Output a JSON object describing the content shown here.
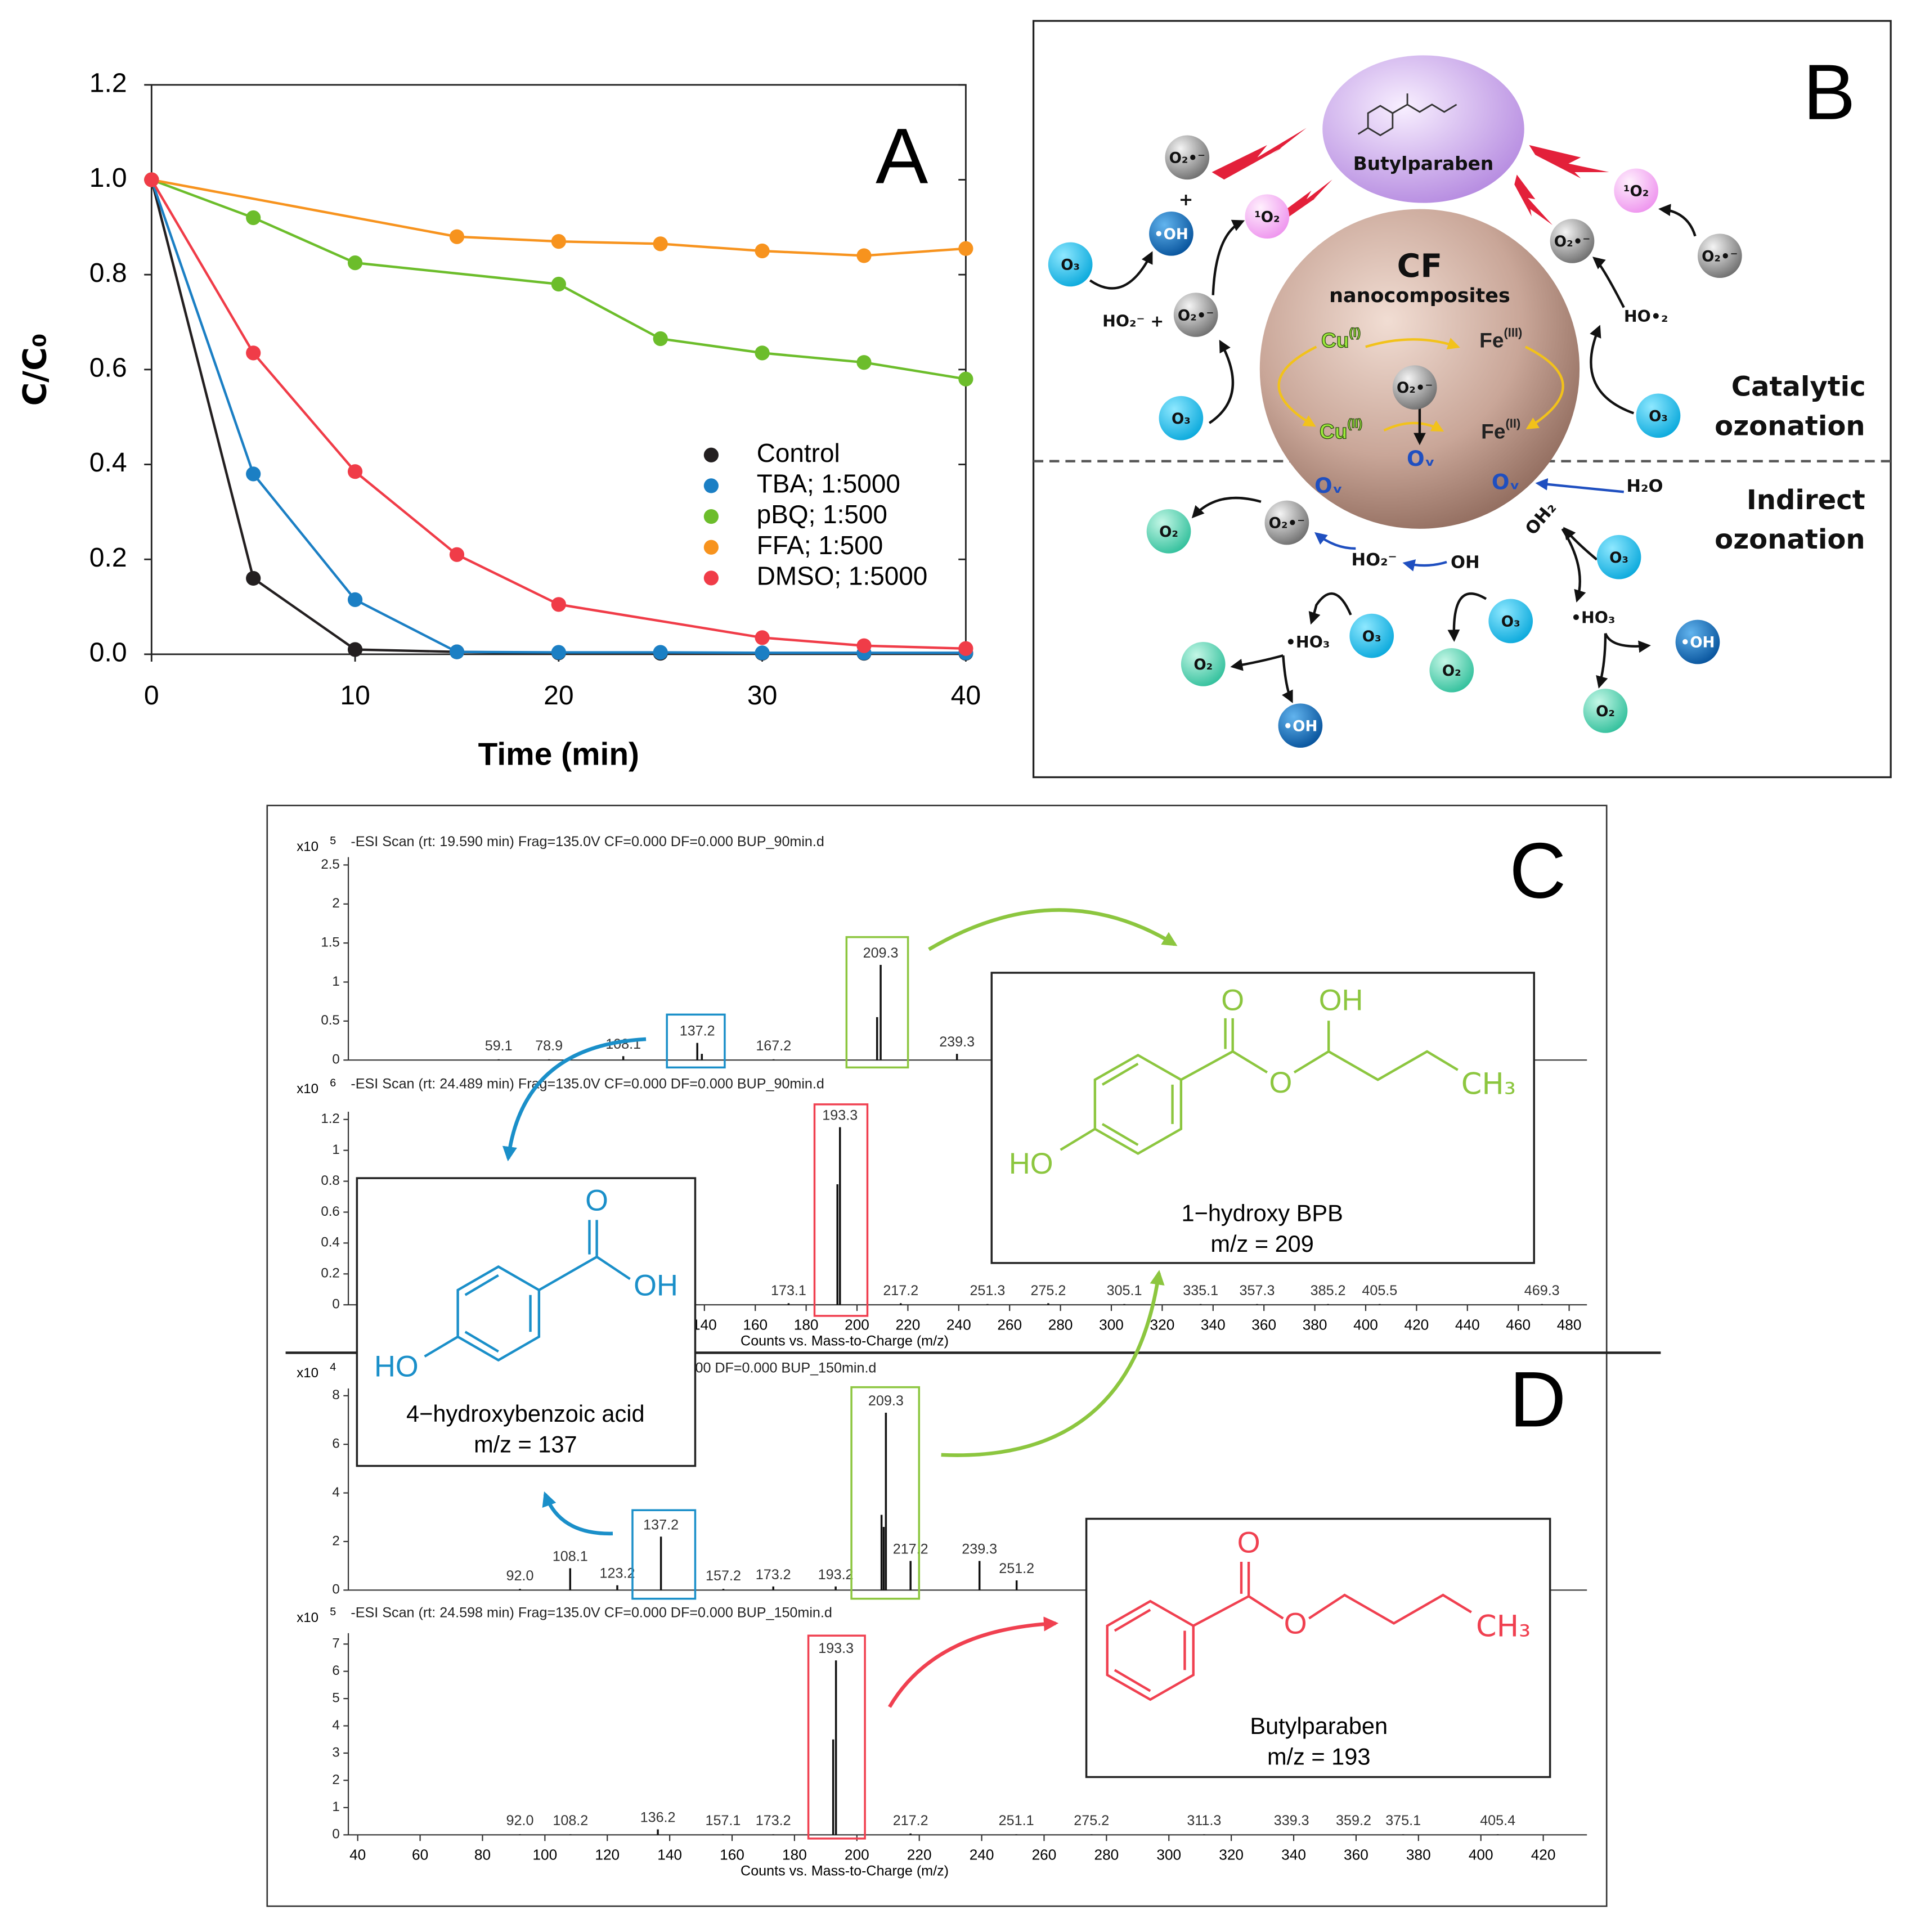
{
  "chart_data": [
    {
      "type": "line",
      "panel_label": "A",
      "xlabel": "Time (min)",
      "ylabel": "C/C₀",
      "xlim": [
        0,
        40
      ],
      "xticks": [
        0,
        10,
        20,
        30,
        40
      ],
      "ylim": [
        0,
        1.2
      ],
      "yticks": [
        {
          "value": 0,
          "label": "0.0"
        },
        0.2,
        0.4,
        0.6,
        0.8,
        {
          "value": 1,
          "label": "1.0"
        },
        1.2
      ],
      "grid": false,
      "legend": "center right",
      "series": [
        {
          "name": "Control",
          "color": "#231f20",
          "x": [
            0,
            5,
            10,
            15,
            20,
            25,
            30,
            35,
            40
          ],
          "values": [
            1,
            0.16,
            0.01,
            0.005,
            0.003,
            0.002,
            0.002,
            0.002,
            0.002
          ]
        },
        {
          "name": "TBA; 1:5000",
          "color": "#1b7fc4",
          "x": [
            0,
            5,
            10,
            15,
            20,
            25,
            30,
            35,
            40
          ],
          "values": [
            1,
            0.38,
            0.115,
            0.005,
            0.004,
            0.004,
            0.003,
            0.003,
            0.003
          ]
        },
        {
          "name": "pBQ; 1:500",
          "color": "#6cbd2b",
          "x": [
            0,
            5,
            10,
            20,
            25,
            30,
            35,
            40
          ],
          "values": [
            1,
            0.92,
            0.825,
            0.78,
            0.665,
            0.635,
            0.615,
            0.58
          ]
        },
        {
          "name": "FFA; 1:500",
          "color": "#f7931e",
          "x": [
            0,
            15,
            20,
            25,
            30,
            35,
            40
          ],
          "values": [
            1,
            0.88,
            0.87,
            0.865,
            0.85,
            0.84,
            0.855
          ]
        },
        {
          "name": "DMSO; 1:5000",
          "color": "#f03c48",
          "x": [
            0,
            5,
            10,
            15,
            20,
            30,
            35,
            40
          ],
          "values": [
            1,
            0.635,
            0.385,
            0.21,
            0.105,
            0.035,
            0.018,
            0.012
          ]
        }
      ]
    },
    {
      "type": "spectrum",
      "panel_label": "C",
      "title": "-ESI Scan (rt: 19.590 min) Frag=135.0V CF=0.000 DF=0.000 BUP_90min.d",
      "multiplier": "x10",
      "exponent": 5,
      "xlim": [
        0,
        487
      ],
      "ylim": [
        0,
        2.6
      ],
      "yticks": [
        0,
        0.5,
        1,
        1.5,
        2,
        2.5
      ],
      "x": [
        59.1,
        78.9,
        108.1,
        137.2,
        139,
        167.2,
        207.9,
        209.3,
        239.3
      ],
      "values": [
        0.01,
        0.01,
        0.05,
        0.22,
        0.08,
        0.01,
        0.55,
        1.22,
        0.08
      ],
      "x_labels": [
        "59.1",
        "78.9",
        "108.1",
        "137.2",
        null,
        "167.2",
        null,
        "209.3",
        "239.3"
      ]
    },
    {
      "type": "spectrum",
      "title": "-ESI Scan (rt: 24.489 min) Frag=135.0V CF=0.000 DF=0.000 BUP_90min.d",
      "multiplier": "x10",
      "exponent": 6,
      "xlim": [
        0,
        487
      ],
      "ylim": [
        0,
        1.25
      ],
      "yticks": [
        0,
        0.2,
        0.4,
        0.6,
        0.8,
        1,
        1.2
      ],
      "xticks": [
        140,
        160,
        180,
        200,
        220,
        240,
        260,
        280,
        300,
        320,
        340,
        360,
        380,
        400,
        420,
        440,
        460,
        480
      ],
      "xlabel": "Counts vs. Mass-to-Charge (m/z)",
      "x": [
        173.1,
        192.3,
        193.3,
        217.2,
        251.3,
        275.2,
        305.1,
        335.1,
        357.3,
        385.2,
        405.5,
        469.3
      ],
      "values": [
        0.01,
        0.78,
        1.15,
        0.01,
        0.005,
        0.01,
        0.005,
        0.005,
        0.005,
        0.005,
        0.005,
        0.005
      ],
      "x_labels": [
        "173.1",
        null,
        "193.3",
        "217.2",
        "251.3",
        "275.2",
        "305.1",
        "335.1",
        "357.3",
        "385.2",
        "405.5",
        "469.3"
      ]
    },
    {
      "type": "spectrum",
      "panel_label": "D",
      "title": "00 DF=0.000 BUP_150min.d",
      "multiplier": "x10",
      "exponent": 4,
      "xlim": [
        37,
        434
      ],
      "ylim": [
        0,
        8.3
      ],
      "yticks": [
        0,
        2,
        4,
        6,
        8
      ],
      "x": [
        92.0,
        108.1,
        123.2,
        137.2,
        157.2,
        173.2,
        193.2,
        207.9,
        208.6,
        209.3,
        217.2,
        239.3,
        251.2
      ],
      "values": [
        0.05,
        0.9,
        0.2,
        2.2,
        0.05,
        0.15,
        0.15,
        3.1,
        2.6,
        7.3,
        1.2,
        1.2,
        0.4
      ],
      "x_labels": [
        "92.0",
        "108.1",
        "123.2",
        "137.2",
        "157.2",
        "173.2",
        "193.2",
        null,
        null,
        "209.3",
        "217.2",
        "239.3",
        "251.2"
      ]
    },
    {
      "type": "spectrum",
      "title": "-ESI Scan (rt: 24.598 min) Frag=135.0V CF=0.000 DF=0.000 BUP_150min.d",
      "multiplier": "x10",
      "exponent": 5,
      "xlim": [
        37,
        434
      ],
      "ylim": [
        0,
        7.4
      ],
      "yticks": [
        0,
        1,
        2,
        3,
        4,
        5,
        6,
        7
      ],
      "xticks": [
        40,
        60,
        80,
        100,
        120,
        140,
        160,
        180,
        200,
        220,
        240,
        260,
        280,
        300,
        320,
        340,
        360,
        380,
        400,
        420
      ],
      "xlabel": "Counts vs. Mass-to-Charge (m/z)",
      "x": [
        92.0,
        108.2,
        136.2,
        157.1,
        173.2,
        192.4,
        193.3,
        217.2,
        251.1,
        275.2,
        311.3,
        339.3,
        359.2,
        375.1,
        405.4
      ],
      "values": [
        0.02,
        0.02,
        0.2,
        0.02,
        0.02,
        3.5,
        6.4,
        0.05,
        0.02,
        0.02,
        0.02,
        0.02,
        0.02,
        0.02,
        0.02
      ],
      "x_labels": [
        "92.0",
        "108.2",
        "136.2",
        "157.1",
        "173.2",
        null,
        "193.3",
        "217.2",
        "251.1",
        "275.2",
        "311.3",
        "339.3",
        "359.2",
        "375.1",
        "405.4"
      ]
    }
  ],
  "diagram": {
    "panel_label": "B",
    "species": [
      "O₂•⁻",
      "•OH",
      "¹O₂",
      "O₃",
      "O₂•⁻",
      "O₃",
      "¹O₂",
      "O₂•⁻",
      "O₂•⁻",
      "O₃",
      "O₂•⁻",
      "O₂",
      "O₂•⁻",
      "O₃",
      "•OH",
      "O₂",
      "O₃",
      "O₂",
      "•OH",
      "O₃",
      "O₂"
    ],
    "metals": [
      {
        "symbol": "Cu",
        "state": "(I)"
      },
      {
        "symbol": "Fe",
        "state": "(III)"
      },
      {
        "symbol": "Cu",
        "state": "(II)"
      },
      {
        "symbol": "Fe",
        "state": "(II)"
      }
    ],
    "labels": [
      "+",
      "HO₂⁻ +",
      "HO•₂",
      "CF",
      "nanocomposites",
      "Oᵥ",
      "Oᵥ",
      "Oᵥ",
      "H₂O",
      "HO₂⁻",
      "OH",
      "OH₂",
      "•HO₃",
      "•HO₃",
      "Butylparaben",
      "Catalytic",
      "ozonation",
      "Indirect",
      "ozonation"
    ]
  },
  "structures": [
    {
      "atoms": [
        "O",
        "OH",
        "HO"
      ],
      "name": "4−hydroxybenzoic acid",
      "mz": "m/z = 137"
    },
    {
      "atoms": [
        "O",
        "OH",
        "O",
        "HO",
        "CH₃"
      ],
      "name": "1−hydroxy BPB",
      "mz": "m/z = 209"
    },
    {
      "atoms": [
        "O",
        "O",
        "CH₃"
      ],
      "name": "Butylparaben",
      "mz": "m/z = 193"
    }
  ]
}
